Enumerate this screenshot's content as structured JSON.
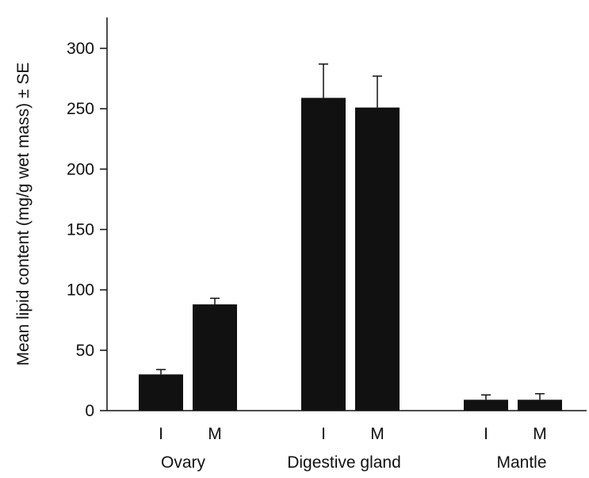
{
  "chart_data": {
    "type": "bar",
    "title": "",
    "xlabel": "",
    "ylabel": "Mean lipid content (mg/g wet mass) ± SE",
    "ylim": [
      0,
      325
    ],
    "yticks": [
      0,
      50,
      100,
      150,
      200,
      250,
      300
    ],
    "grid": false,
    "bar_color": "#111111",
    "groups": [
      {
        "name": "Ovary",
        "bars": [
          {
            "label": "I",
            "value": 30,
            "se": 4
          },
          {
            "label": "M",
            "value": 88,
            "se": 5
          }
        ]
      },
      {
        "name": "Digestive gland",
        "bars": [
          {
            "label": "I",
            "value": 259,
            "se": 28
          },
          {
            "label": "M",
            "value": 251,
            "se": 26
          }
        ]
      },
      {
        "name": "Mantle",
        "bars": [
          {
            "label": "I",
            "value": 9,
            "se": 4
          },
          {
            "label": "M",
            "value": 9,
            "se": 5
          }
        ]
      }
    ]
  }
}
